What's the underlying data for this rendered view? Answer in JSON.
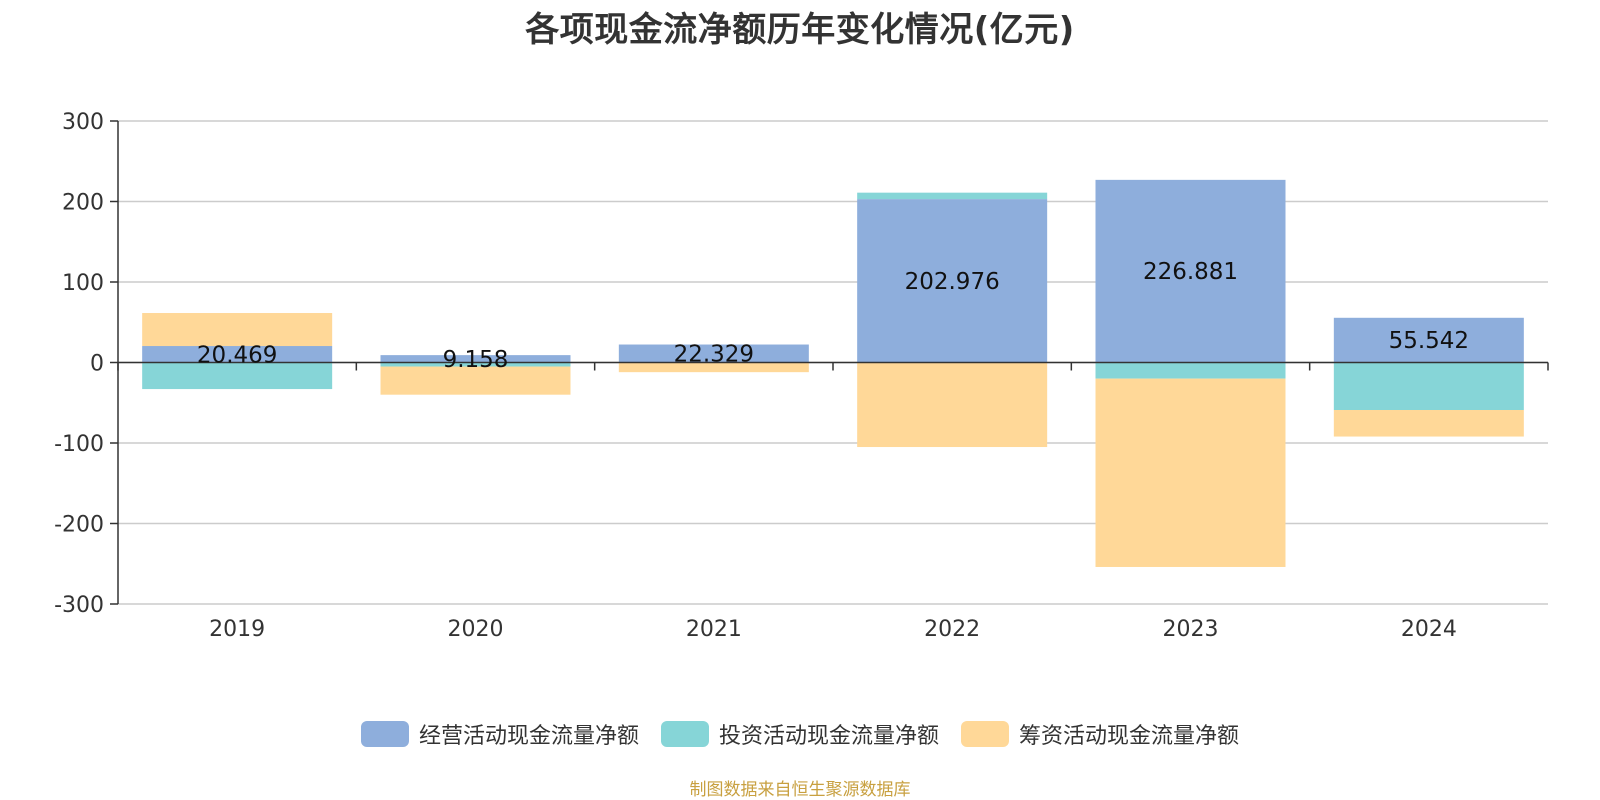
{
  "title": "各项现金流净额历年变化情况(亿元)",
  "footer": {
    "text": "制图数据来自恒生聚源数据库",
    "color": "#C8A040"
  },
  "chart_data": {
    "type": "bar",
    "stacked": true,
    "categories": [
      "2019",
      "2020",
      "2021",
      "2022",
      "2023",
      "2024"
    ],
    "ylim": [
      -300,
      300
    ],
    "yticks": [
      300,
      200,
      100,
      0,
      -100,
      -200,
      -300
    ],
    "grid": true,
    "legend_position": "bottom",
    "series": [
      {
        "name": "经营活动现金流量净额",
        "color": "#8EAEDC",
        "values": [
          20.469,
          9.158,
          22.329,
          202.976,
          226.881,
          55.542
        ],
        "labels": [
          "20.469",
          "9.158",
          "22.329",
          "202.976",
          "226.881",
          "55.542"
        ]
      },
      {
        "name": "投资活动现金流量净额",
        "color": "#86D5D7",
        "values": [
          -33,
          -5,
          0,
          8,
          -20,
          -59
        ]
      },
      {
        "name": "筹资活动现金流量净额",
        "color": "#FFD898",
        "values": [
          41,
          -35,
          -12,
          -105,
          -234,
          -33
        ]
      }
    ]
  }
}
